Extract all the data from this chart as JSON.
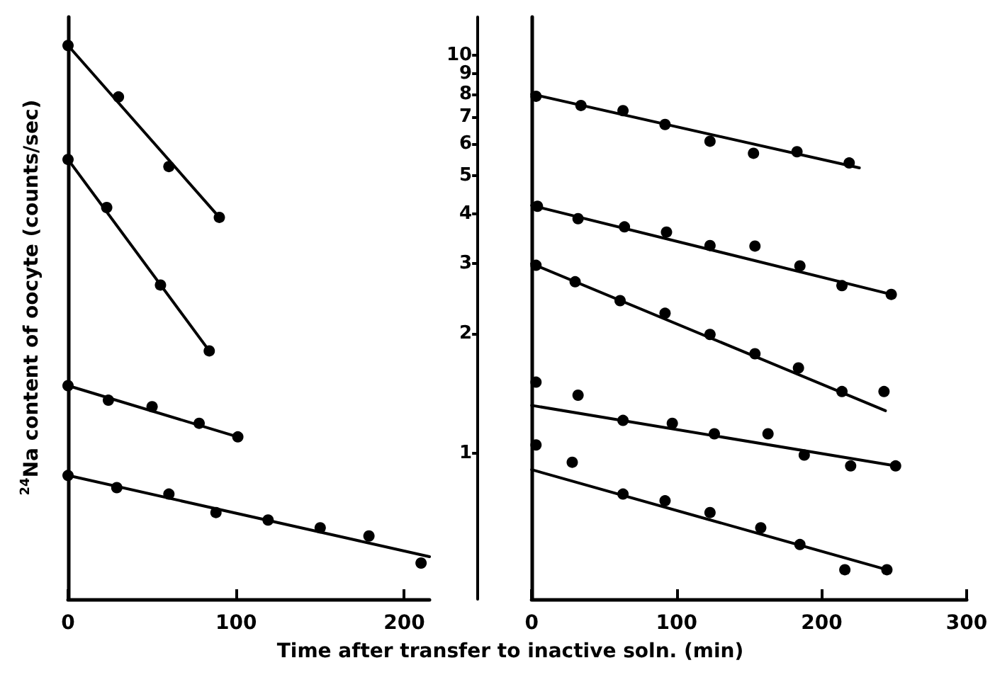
{
  "chart_data": [
    {
      "type": "scatter",
      "ylabel": "$^{24}$Na content of oocyte (counts/sec)",
      "xlabel": "Time after transfer to inactive soln. (min)",
      "log": true,
      "grid": false,
      "tick_labels": "x",
      "xlim": [
        0,
        215
      ],
      "xticks": [
        0,
        100,
        200
      ],
      "ylim": [
        0.43,
        12.5
      ],
      "series": [
        {
          "marker": "circle",
          "color": "#000000",
          "x": [
            0,
            30,
            60,
            90
          ],
          "values": [
            10.6,
            7.87,
            5.26,
            3.92
          ]
        },
        {
          "type": "line",
          "marker": "none",
          "color": "#000000",
          "x": [
            0,
            90
          ],
          "values": [
            10.6,
            3.92
          ]
        },
        {
          "marker": "circle",
          "color": "#000000",
          "x": [
            0,
            23,
            55,
            84
          ],
          "values": [
            5.48,
            4.15,
            2.65,
            1.81
          ]
        },
        {
          "type": "line",
          "marker": "none",
          "color": "#000000",
          "x": [
            0,
            84
          ],
          "values": [
            5.48,
            1.81
          ]
        },
        {
          "marker": "circle",
          "color": "#000000",
          "x": [
            0,
            24,
            50,
            78,
            101
          ],
          "values": [
            1.48,
            1.36,
            1.31,
            1.19,
            1.1
          ]
        },
        {
          "type": "line",
          "marker": "none",
          "color": "#000000",
          "x": [
            0,
            101
          ],
          "values": [
            1.48,
            1.1
          ]
        },
        {
          "marker": "circle",
          "color": "#000000",
          "x": [
            0,
            29,
            60,
            88,
            119,
            150,
            179,
            210
          ],
          "values": [
            0.88,
            0.82,
            0.79,
            0.71,
            0.68,
            0.65,
            0.62,
            0.53
          ]
        },
        {
          "type": "line",
          "marker": "none",
          "color": "#000000",
          "x": [
            0,
            215
          ],
          "values": [
            0.88,
            0.55
          ]
        }
      ]
    },
    {
      "type": "scatter",
      "log": true,
      "grid": false,
      "xlim": [
        0,
        300
      ],
      "xticks": [
        0,
        100,
        200,
        300
      ],
      "ylim": [
        0.43,
        12.5
      ],
      "yticks": [
        1,
        2,
        3,
        4,
        5,
        6,
        7,
        8,
        9,
        10
      ],
      "series": [
        {
          "marker": "circle",
          "color": "#000000",
          "x": [
            3,
            34,
            63,
            92,
            123,
            153,
            183,
            219
          ],
          "values": [
            7.9,
            7.49,
            7.27,
            6.71,
            6.09,
            5.68,
            5.73,
            5.37
          ]
        },
        {
          "type": "line",
          "marker": "none",
          "color": "#000000",
          "x": [
            0,
            226
          ],
          "values": [
            8.0,
            5.22
          ]
        },
        {
          "marker": "circle",
          "color": "#000000",
          "x": [
            4,
            32,
            64,
            93,
            123,
            154,
            185,
            214,
            248
          ],
          "values": [
            4.18,
            3.89,
            3.71,
            3.6,
            3.33,
            3.32,
            2.96,
            2.64,
            2.51
          ]
        },
        {
          "type": "line",
          "marker": "none",
          "color": "#000000",
          "x": [
            0,
            248
          ],
          "values": [
            4.2,
            2.51
          ]
        },
        {
          "marker": "circle",
          "color": "#000000",
          "x": [
            3,
            30,
            61,
            92,
            123,
            154,
            184,
            214,
            243
          ],
          "values": [
            2.97,
            2.7,
            2.42,
            2.25,
            1.99,
            1.78,
            1.64,
            1.43,
            1.43
          ]
        },
        {
          "type": "line",
          "marker": "none",
          "color": "#000000",
          "x": [
            0,
            244
          ],
          "values": [
            3.0,
            1.28
          ]
        },
        {
          "marker": "circle",
          "color": "#000000",
          "x": [
            3,
            32,
            63,
            97,
            126,
            163,
            188,
            220,
            251
          ],
          "values": [
            1.51,
            1.4,
            1.21,
            1.19,
            1.12,
            1.12,
            0.99,
            0.93,
            0.93
          ]
        },
        {
          "type": "line",
          "marker": "none",
          "color": "#000000",
          "x": [
            0,
            251
          ],
          "values": [
            1.32,
            0.93
          ]
        },
        {
          "marker": "circle",
          "color": "#000000",
          "x": [
            3,
            28,
            63,
            92,
            123,
            158,
            185,
            216,
            245
          ],
          "values": [
            1.05,
            0.95,
            0.79,
            0.76,
            0.71,
            0.65,
            0.59,
            0.51,
            0.51
          ]
        },
        {
          "type": "line",
          "marker": "none",
          "color": "#000000",
          "x": [
            0,
            245
          ],
          "values": [
            0.91,
            0.51
          ]
        }
      ]
    }
  ]
}
